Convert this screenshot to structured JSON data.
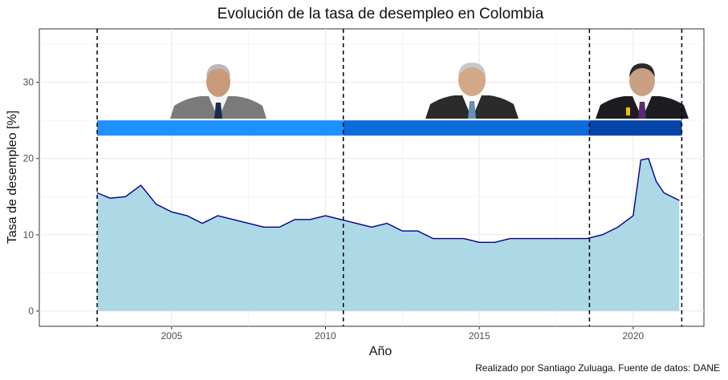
{
  "chart_data": {
    "type": "area",
    "title": "Evolución de la tasa de desempleo en Colombia",
    "xlabel": "Año",
    "ylabel": "Tasa de desempleo [%]",
    "caption": "Realizado por Santiago Zuluaga. Fuente de datos: DANE",
    "xlim": [
      2000.7,
      2022.3
    ],
    "ylim": [
      -2,
      37
    ],
    "x_ticks": [
      2005,
      2010,
      2015,
      2020
    ],
    "y_ticks": [
      0,
      10,
      20,
      30
    ],
    "grid": true,
    "line_color": "#00008b",
    "fill_color": "#add8e6",
    "series": [
      {
        "x": [
          2002.58,
          2003.0,
          2003.5,
          2004.0,
          2004.5,
          2005.0,
          2005.5,
          2006.0,
          2006.5,
          2007.0,
          2007.5,
          2008.0,
          2008.5,
          2009.0,
          2009.5,
          2010.0,
          2010.5,
          2011.0,
          2011.5,
          2012.0,
          2012.5,
          2013.0,
          2013.5,
          2014.0,
          2014.5,
          2015.0,
          2015.5,
          2016.0,
          2016.5,
          2017.0,
          2017.5,
          2018.0,
          2018.5,
          2019.0,
          2019.5,
          2020.0,
          2020.25,
          2020.5,
          2020.75,
          2021.0,
          2021.25,
          2021.5
        ],
        "y": [
          15.5,
          14.8,
          15.0,
          16.5,
          14.0,
          13.0,
          12.5,
          11.5,
          12.5,
          12.0,
          11.5,
          11.0,
          11.0,
          12.0,
          12.0,
          12.5,
          12.0,
          11.5,
          11.0,
          11.5,
          10.5,
          10.5,
          9.5,
          9.5,
          9.5,
          9.0,
          9.0,
          9.5,
          9.5,
          9.5,
          9.5,
          9.5,
          9.5,
          10.0,
          11.0,
          12.5,
          19.8,
          20.0,
          17.0,
          15.5,
          15.0,
          14.5
        ]
      }
    ],
    "periods": [
      {
        "start": 2002.58,
        "end": 2010.58,
        "color": "#1e90ff"
      },
      {
        "start": 2010.58,
        "end": 2018.58,
        "color": "#0e6bda"
      },
      {
        "start": 2018.58,
        "end": 2021.58,
        "color": "#0544a8"
      }
    ],
    "band_y": [
      23.0,
      25.0
    ],
    "period_lines": [
      2002.58,
      2010.58,
      2018.58,
      2021.58
    ]
  }
}
